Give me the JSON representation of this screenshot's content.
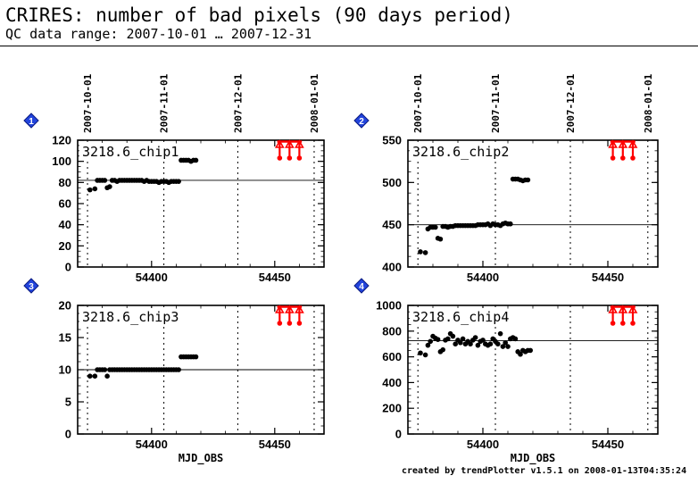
{
  "header": {
    "title": "CRIRES: number of bad pixels (90 days period)",
    "subtitle": "QC data range: 2007-10-01 … 2007-12-31"
  },
  "footer": {
    "credit": "created by trendPlotter v1.5.1 on 2008-01-13T04:35:24"
  },
  "chart_data": [
    {
      "type": "scatter",
      "panel_number": "1",
      "label": "3218.6_chip1",
      "xlim": [
        54370,
        54470
      ],
      "ylim": [
        0,
        120
      ],
      "yticks": [
        0,
        20,
        40,
        60,
        80,
        100,
        120
      ],
      "xticks": [
        54400,
        54450
      ],
      "xlabel": "",
      "top_dates": [
        {
          "x": 54374,
          "label": "2007-10-01"
        },
        {
          "x": 54405,
          "label": "2007-11-01"
        },
        {
          "x": 54435,
          "label": "2007-12-01"
        },
        {
          "x": 54466,
          "label": "2008-01-01"
        }
      ],
      "reference_line": 82,
      "outlier_arrows_x": [
        54452,
        54456,
        54460
      ],
      "points": [
        [
          54375,
          73
        ],
        [
          54377,
          74
        ],
        [
          54378,
          82
        ],
        [
          54379,
          82
        ],
        [
          54380,
          82
        ],
        [
          54381,
          82
        ],
        [
          54382,
          75
        ],
        [
          54383,
          76
        ],
        [
          54384,
          82
        ],
        [
          54385,
          82
        ],
        [
          54386,
          81
        ],
        [
          54387,
          82
        ],
        [
          54388,
          82
        ],
        [
          54389,
          82
        ],
        [
          54390,
          82
        ],
        [
          54391,
          82
        ],
        [
          54392,
          82
        ],
        [
          54393,
          82
        ],
        [
          54394,
          82
        ],
        [
          54395,
          82
        ],
        [
          54396,
          82
        ],
        [
          54397,
          81
        ],
        [
          54398,
          82
        ],
        [
          54399,
          81
        ],
        [
          54400,
          81
        ],
        [
          54401,
          81
        ],
        [
          54402,
          81
        ],
        [
          54403,
          80
        ],
        [
          54404,
          81
        ],
        [
          54405,
          81
        ],
        [
          54406,
          81
        ],
        [
          54407,
          80
        ],
        [
          54408,
          81
        ],
        [
          54409,
          81
        ],
        [
          54410,
          81
        ],
        [
          54411,
          81
        ],
        [
          54412,
          101
        ],
        [
          54413,
          101
        ],
        [
          54414,
          101
        ],
        [
          54415,
          101
        ],
        [
          54416,
          100
        ],
        [
          54417,
          101
        ],
        [
          54418,
          101
        ]
      ]
    },
    {
      "type": "scatter",
      "panel_number": "2",
      "label": "3218.6_chip2",
      "xlim": [
        54370,
        54470
      ],
      "ylim": [
        400,
        550
      ],
      "yticks": [
        400,
        450,
        500,
        550
      ],
      "xticks": [
        54400,
        54450
      ],
      "xlabel": "",
      "top_dates": [
        {
          "x": 54374,
          "label": "2007-10-01"
        },
        {
          "x": 54405,
          "label": "2007-11-01"
        },
        {
          "x": 54435,
          "label": "2007-12-01"
        },
        {
          "x": 54466,
          "label": "2008-01-01"
        }
      ],
      "reference_line": 450,
      "outlier_arrows_x": [
        54452,
        54456,
        54460
      ],
      "points": [
        [
          54375,
          418
        ],
        [
          54377,
          417
        ],
        [
          54378,
          445
        ],
        [
          54379,
          447
        ],
        [
          54380,
          447
        ],
        [
          54381,
          447
        ],
        [
          54382,
          434
        ],
        [
          54383,
          433
        ],
        [
          54384,
          448
        ],
        [
          54385,
          448
        ],
        [
          54386,
          447
        ],
        [
          54387,
          448
        ],
        [
          54388,
          448
        ],
        [
          54389,
          449
        ],
        [
          54390,
          449
        ],
        [
          54391,
          449
        ],
        [
          54392,
          449
        ],
        [
          54393,
          449
        ],
        [
          54394,
          449
        ],
        [
          54395,
          449
        ],
        [
          54396,
          449
        ],
        [
          54397,
          449
        ],
        [
          54398,
          450
        ],
        [
          54399,
          450
        ],
        [
          54400,
          450
        ],
        [
          54401,
          450
        ],
        [
          54402,
          451
        ],
        [
          54403,
          449
        ],
        [
          54404,
          451
        ],
        [
          54405,
          450
        ],
        [
          54406,
          450
        ],
        [
          54407,
          449
        ],
        [
          54408,
          451
        ],
        [
          54409,
          452
        ],
        [
          54410,
          451
        ],
        [
          54411,
          451
        ],
        [
          54412,
          504
        ],
        [
          54413,
          504
        ],
        [
          54414,
          504
        ],
        [
          54415,
          503
        ],
        [
          54416,
          502
        ],
        [
          54417,
          503
        ],
        [
          54418,
          503
        ]
      ]
    },
    {
      "type": "scatter",
      "panel_number": "3",
      "label": "3218.6_chip3",
      "xlim": [
        54370,
        54470
      ],
      "ylim": [
        0,
        20
      ],
      "yticks": [
        0,
        5,
        10,
        15,
        20
      ],
      "xticks": [
        54400,
        54450
      ],
      "xlabel": "MJD_OBS",
      "top_dates": [],
      "reference_line": 10,
      "outlier_arrows_x": [
        54452,
        54456,
        54460
      ],
      "points": [
        [
          54375,
          9
        ],
        [
          54377,
          9
        ],
        [
          54378,
          10
        ],
        [
          54379,
          10
        ],
        [
          54380,
          10
        ],
        [
          54381,
          10
        ],
        [
          54382,
          9
        ],
        [
          54383,
          10
        ],
        [
          54384,
          10
        ],
        [
          54385,
          10
        ],
        [
          54386,
          10
        ],
        [
          54387,
          10
        ],
        [
          54388,
          10
        ],
        [
          54389,
          10
        ],
        [
          54390,
          10
        ],
        [
          54391,
          10
        ],
        [
          54392,
          10
        ],
        [
          54393,
          10
        ],
        [
          54394,
          10
        ],
        [
          54395,
          10
        ],
        [
          54396,
          10
        ],
        [
          54397,
          10
        ],
        [
          54398,
          10
        ],
        [
          54399,
          10
        ],
        [
          54400,
          10
        ],
        [
          54401,
          10
        ],
        [
          54402,
          10
        ],
        [
          54403,
          10
        ],
        [
          54404,
          10
        ],
        [
          54405,
          10
        ],
        [
          54406,
          10
        ],
        [
          54407,
          10
        ],
        [
          54408,
          10
        ],
        [
          54409,
          10
        ],
        [
          54410,
          10
        ],
        [
          54411,
          10
        ],
        [
          54412,
          12
        ],
        [
          54413,
          12
        ],
        [
          54414,
          12
        ],
        [
          54415,
          12
        ],
        [
          54416,
          12
        ],
        [
          54417,
          12
        ],
        [
          54418,
          12
        ]
      ]
    },
    {
      "type": "scatter",
      "panel_number": "4",
      "label": "3218.6_chip4",
      "xlim": [
        54370,
        54470
      ],
      "ylim": [
        0,
        1000
      ],
      "yticks": [
        0,
        200,
        400,
        600,
        800,
        1000
      ],
      "xticks": [
        54400,
        54450
      ],
      "xlabel": "MJD_OBS",
      "top_dates": [],
      "reference_line": 725,
      "outlier_arrows_x": [
        54452,
        54456,
        54460
      ],
      "points": [
        [
          54375,
          630
        ],
        [
          54377,
          615
        ],
        [
          54378,
          690
        ],
        [
          54379,
          720
        ],
        [
          54380,
          760
        ],
        [
          54381,
          745
        ],
        [
          54382,
          735
        ],
        [
          54383,
          640
        ],
        [
          54384,
          655
        ],
        [
          54385,
          730
        ],
        [
          54386,
          740
        ],
        [
          54387,
          780
        ],
        [
          54388,
          760
        ],
        [
          54389,
          700
        ],
        [
          54390,
          730
        ],
        [
          54391,
          710
        ],
        [
          54392,
          740
        ],
        [
          54393,
          700
        ],
        [
          54394,
          720
        ],
        [
          54395,
          700
        ],
        [
          54396,
          730
        ],
        [
          54397,
          750
        ],
        [
          54398,
          690
        ],
        [
          54399,
          720
        ],
        [
          54400,
          730
        ],
        [
          54401,
          700
        ],
        [
          54402,
          690
        ],
        [
          54403,
          700
        ],
        [
          54404,
          740
        ],
        [
          54405,
          720
        ],
        [
          54406,
          700
        ],
        [
          54407,
          780
        ],
        [
          54408,
          680
        ],
        [
          54409,
          710
        ],
        [
          54410,
          680
        ],
        [
          54411,
          740
        ],
        [
          54412,
          750
        ],
        [
          54413,
          740
        ],
        [
          54414,
          640
        ],
        [
          54415,
          620
        ],
        [
          54416,
          650
        ],
        [
          54417,
          640
        ],
        [
          54418,
          650
        ],
        [
          54419,
          650
        ]
      ]
    }
  ]
}
